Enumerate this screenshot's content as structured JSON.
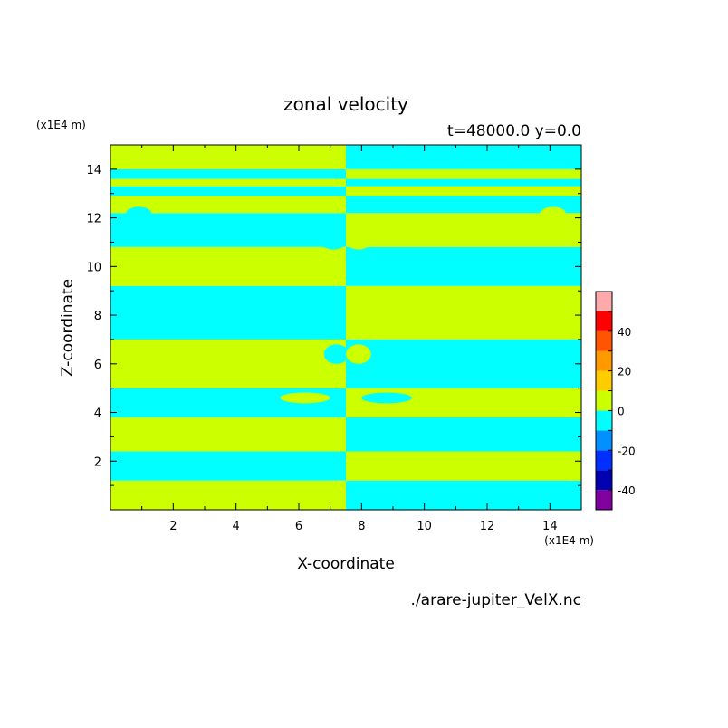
{
  "chart_data": {
    "type": "heatmap",
    "title": "zonal velocity",
    "subtitle": "t=48000.0 y=0.0",
    "xlabel": "X-coordinate",
    "ylabel": "Z-coordinate",
    "x_unit": "(x1E4 m)",
    "y_unit": "(x1E4 m)",
    "source_file": "./arare-jupiter_VelX.nc",
    "xlim": [
      0,
      15
    ],
    "ylim": [
      0,
      15
    ],
    "x_ticks": [
      "2",
      "4",
      "6",
      "8",
      "10",
      "12",
      "14"
    ],
    "x_tick_values": [
      2,
      4,
      6,
      8,
      10,
      12,
      14
    ],
    "y_ticks": [
      "2",
      "4",
      "6",
      "8",
      "10",
      "12",
      "14"
    ],
    "y_tick_values": [
      2,
      4,
      6,
      8,
      10,
      12,
      14
    ],
    "colorbar": {
      "range": [
        -50,
        50
      ],
      "levels": [
        {
          "from": -50,
          "to": -40,
          "color": "#8000a0"
        },
        {
          "from": -40,
          "to": -30,
          "color": "#0000b0"
        },
        {
          "from": -30,
          "to": -20,
          "color": "#0030ff"
        },
        {
          "from": -20,
          "to": -10,
          "color": "#0090ff"
        },
        {
          "from": -10,
          "to": 0,
          "color": "#00ffff"
        },
        {
          "from": 0,
          "to": 10,
          "color": "#ccff00"
        },
        {
          "from": 10,
          "to": 20,
          "color": "#ffcc00"
        },
        {
          "from": 20,
          "to": 30,
          "color": "#ff9900"
        },
        {
          "from": 30,
          "to": 40,
          "color": "#ff5500"
        },
        {
          "from": 40,
          "to": 50,
          "color": "#ff0000"
        },
        {
          "from": 50,
          "to": 60,
          "color": "#ffaaaa"
        }
      ],
      "tick_labels": [
        "40",
        "20",
        "0",
        "-20",
        "-40"
      ],
      "tick_values": [
        40,
        20,
        0,
        -20,
        -40
      ]
    },
    "field": {
      "positive_color": "#ccff00",
      "negative_color": "#00ffff",
      "x_split": 7.5,
      "bands": [
        {
          "z0": 0,
          "z1": 1.2,
          "left": "positive",
          "right": "negative"
        },
        {
          "z0": 1.2,
          "z1": 2.4,
          "left": "negative",
          "right": "positive"
        },
        {
          "z0": 2.4,
          "z1": 3.8,
          "left": "positive",
          "right": "negative"
        },
        {
          "z0": 3.8,
          "z1": 5.0,
          "left": "negative",
          "right": "positive"
        },
        {
          "z0": 5.0,
          "z1": 7.0,
          "left": "positive",
          "right": "negative"
        },
        {
          "z0": 7.0,
          "z1": 9.2,
          "left": "negative",
          "right": "positive"
        },
        {
          "z0": 9.2,
          "z1": 10.8,
          "left": "positive",
          "right": "negative"
        },
        {
          "z0": 10.8,
          "z1": 12.2,
          "left": "negative",
          "right": "positive"
        },
        {
          "z0": 12.2,
          "z1": 12.9,
          "left": "positive",
          "right": "negative"
        },
        {
          "z0": 12.9,
          "z1": 13.3,
          "left": "negative",
          "right": "positive"
        },
        {
          "z0": 13.3,
          "z1": 13.6,
          "left": "positive",
          "right": "negative"
        },
        {
          "z0": 13.6,
          "z1": 14.0,
          "left": "negative",
          "right": "positive"
        },
        {
          "z0": 14.0,
          "z1": 15.0,
          "left": "positive",
          "right": "negative"
        }
      ]
    }
  }
}
